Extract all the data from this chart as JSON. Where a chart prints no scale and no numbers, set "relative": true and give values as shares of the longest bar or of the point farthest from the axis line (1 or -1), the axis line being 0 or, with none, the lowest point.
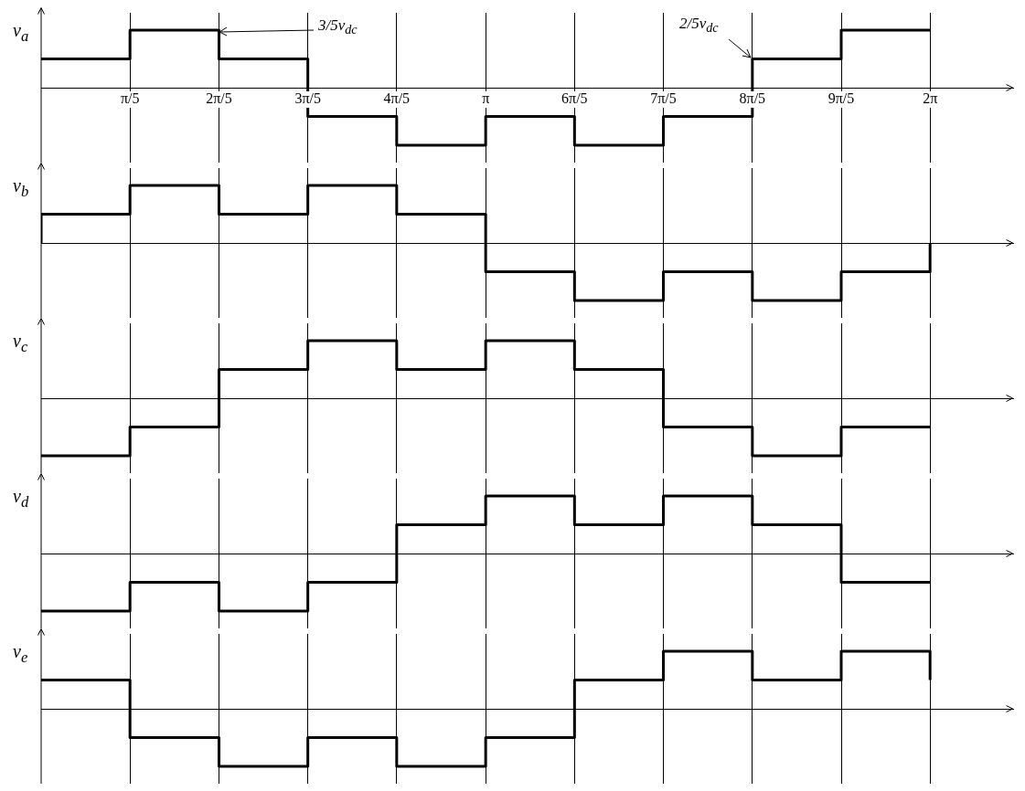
{
  "chart_data": [
    {
      "type": "step",
      "ylabel": "v$_{a}$",
      "relative": true,
      "color": "#000000",
      "grid": "x",
      "tick_labels": "x",
      "xlim": [
        0,
        6.87
      ],
      "xticks": [
        {
          "value": 0.628,
          "label": "π/5"
        },
        {
          "value": 1.257,
          "label": "2π/5"
        },
        {
          "value": 1.885,
          "label": "3π/5"
        },
        {
          "value": 2.513,
          "label": "4π/5"
        },
        {
          "value": 3.142,
          "label": "π"
        },
        {
          "value": 3.77,
          "label": "6π/5"
        },
        {
          "value": 4.398,
          "label": "7π/5"
        },
        {
          "value": 5.027,
          "label": "8π/5"
        },
        {
          "value": 5.655,
          "label": "9π/5"
        },
        {
          "value": 6.283,
          "label": "2π"
        }
      ],
      "x": [
        0,
        0.628,
        1.257,
        1.885,
        2.513,
        3.142,
        3.77,
        4.398,
        5.027,
        5.655,
        6.283
      ],
      "values": [
        0.5,
        1,
        0.5,
        -0.5,
        -1,
        -0.5,
        -1,
        -0.5,
        0.5,
        1,
        1
      ],
      "annotations": [
        "3/5v$_{dc}$",
        "2/5v$_{dc}$"
      ]
    },
    {
      "type": "step",
      "ylabel": "v$_{b}$",
      "relative": true,
      "color": "#000000",
      "grid": "x",
      "tick_labels": false,
      "xlim": [
        0,
        6.87
      ],
      "xticks": [
        {
          "value": 0.628,
          "label": null
        },
        {
          "value": 1.257,
          "label": null
        },
        {
          "value": 1.885,
          "label": null
        },
        {
          "value": 2.513,
          "label": null
        },
        {
          "value": 3.142,
          "label": null
        },
        {
          "value": 3.77,
          "label": null
        },
        {
          "value": 4.398,
          "label": null
        },
        {
          "value": 5.027,
          "label": null
        },
        {
          "value": 5.655,
          "label": null
        },
        {
          "value": 6.283,
          "label": null
        }
      ],
      "x": [
        0,
        0,
        0.628,
        1.257,
        1.885,
        2.513,
        3.142,
        3.77,
        4.398,
        5.027,
        5.655,
        6.283,
        6.283
      ],
      "values": [
        0,
        0.5,
        1,
        0.5,
        1,
        0.5,
        -0.5,
        -1,
        -0.5,
        -1,
        -0.5,
        -0.5,
        0
      ]
    },
    {
      "type": "step",
      "ylabel": "v$_{c}$",
      "relative": true,
      "color": "#000000",
      "grid": "x",
      "tick_labels": false,
      "xlim": [
        0,
        6.87
      ],
      "xticks": [
        {
          "value": 0.628,
          "label": null
        },
        {
          "value": 1.257,
          "label": null
        },
        {
          "value": 1.885,
          "label": null
        },
        {
          "value": 2.513,
          "label": null
        },
        {
          "value": 3.142,
          "label": null
        },
        {
          "value": 3.77,
          "label": null
        },
        {
          "value": 4.398,
          "label": null
        },
        {
          "value": 5.027,
          "label": null
        },
        {
          "value": 5.655,
          "label": null
        },
        {
          "value": 6.283,
          "label": null
        }
      ],
      "x": [
        0,
        0.628,
        1.257,
        1.885,
        2.513,
        3.142,
        3.77,
        4.398,
        5.027,
        5.655,
        6.283
      ],
      "values": [
        -1,
        -0.5,
        0.5,
        1,
        0.5,
        1,
        0.5,
        -0.5,
        -1,
        -0.5,
        -0.5
      ]
    },
    {
      "type": "step",
      "ylabel": "v$_{d}$",
      "relative": true,
      "color": "#000000",
      "grid": "x",
      "tick_labels": false,
      "xlim": [
        0,
        6.87
      ],
      "xticks": [
        {
          "value": 0.628,
          "label": null
        },
        {
          "value": 1.257,
          "label": null
        },
        {
          "value": 1.885,
          "label": null
        },
        {
          "value": 2.513,
          "label": null
        },
        {
          "value": 3.142,
          "label": null
        },
        {
          "value": 3.77,
          "label": null
        },
        {
          "value": 4.398,
          "label": null
        },
        {
          "value": 5.027,
          "label": null
        },
        {
          "value": 5.655,
          "label": null
        },
        {
          "value": 6.283,
          "label": null
        }
      ],
      "x": [
        0,
        0.628,
        1.257,
        1.885,
        2.513,
        3.142,
        3.77,
        4.398,
        5.027,
        5.655,
        6.283
      ],
      "values": [
        -1,
        -0.5,
        -1,
        -0.5,
        0.5,
        1,
        0.5,
        1,
        0.5,
        -0.5,
        -0.5
      ]
    },
    {
      "type": "step",
      "ylabel": "v$_{e}$",
      "relative": true,
      "color": "#000000",
      "grid": "x",
      "tick_labels": false,
      "xlim": [
        0,
        6.87
      ],
      "xticks": [
        {
          "value": 0.628,
          "label": null
        },
        {
          "value": 1.257,
          "label": null
        },
        {
          "value": 1.885,
          "label": null
        },
        {
          "value": 2.513,
          "label": null
        },
        {
          "value": 3.142,
          "label": null
        },
        {
          "value": 3.77,
          "label": null
        },
        {
          "value": 4.398,
          "label": null
        },
        {
          "value": 5.027,
          "label": null
        },
        {
          "value": 5.655,
          "label": null
        },
        {
          "value": 6.283,
          "label": null
        }
      ],
      "x": [
        0,
        0.628,
        1.257,
        1.885,
        2.513,
        3.142,
        3.77,
        4.398,
        5.027,
        5.655,
        6.283,
        6.283
      ],
      "values": [
        0.5,
        -0.5,
        -1,
        -0.5,
        -1,
        -0.5,
        0.5,
        1,
        0.5,
        1,
        1,
        0.5
      ]
    }
  ]
}
